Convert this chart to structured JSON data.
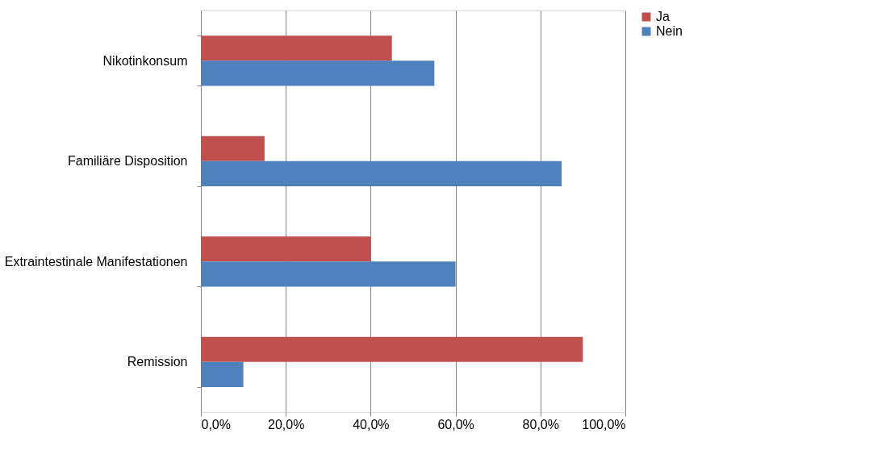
{
  "chart_data": {
    "type": "bar",
    "orientation": "horizontal",
    "categories": [
      "Nikotinkonsum",
      "Familiäre Disposition",
      "Extraintestinale Manifestationen",
      "Remission"
    ],
    "series": [
      {
        "name": "Ja",
        "color": "#c0504d",
        "values": [
          45,
          15,
          40,
          90
        ]
      },
      {
        "name": "Nein",
        "color": "#4f81bd",
        "values": [
          55,
          85,
          60,
          10
        ]
      }
    ],
    "xlim": [
      0,
      100
    ],
    "xticks": [
      {
        "value": 0,
        "label": "0,0%"
      },
      {
        "value": 20,
        "label": "20,0%"
      },
      {
        "value": 40,
        "label": "40,0%"
      },
      {
        "value": 60,
        "label": "60,0%"
      },
      {
        "value": 80,
        "label": "80,0%"
      },
      {
        "value": 100,
        "label": "100,0%"
      }
    ],
    "grid": "x",
    "legend": "right"
  }
}
